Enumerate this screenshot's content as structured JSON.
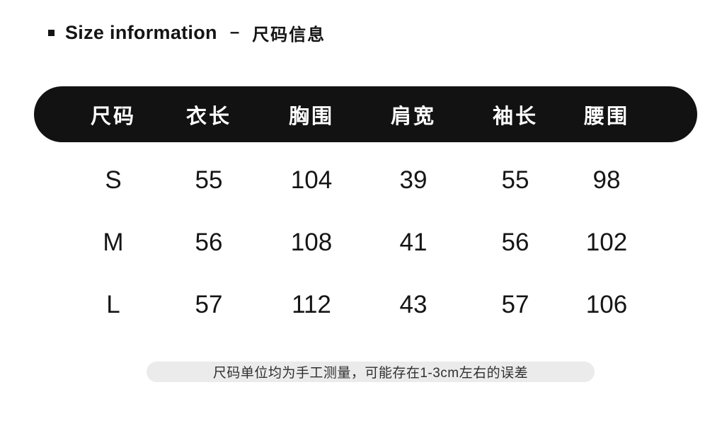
{
  "title": {
    "en": "Size information",
    "separator": "–",
    "zh": "尺码信息"
  },
  "table": {
    "columns": [
      "尺码",
      "衣长",
      "胸围",
      "肩宽",
      "袖长",
      "腰围"
    ],
    "rows": [
      {
        "size": "S",
        "values": [
          "55",
          "104",
          "39",
          "55",
          "98"
        ]
      },
      {
        "size": "M",
        "values": [
          "56",
          "108",
          "41",
          "56",
          "102"
        ]
      },
      {
        "size": "L",
        "values": [
          "57",
          "112",
          "43",
          "57",
          "106"
        ]
      }
    ]
  },
  "note": {
    "text": "尺码单位均为手工测量，可能存在1-3cm左右的误差"
  },
  "colors": {
    "background": "#ffffff",
    "header_bar_bg": "#121212",
    "header_bar_text": "#ffffff",
    "body_text": "#151515",
    "note_bg": "#ebebeb",
    "note_text": "#303030"
  }
}
